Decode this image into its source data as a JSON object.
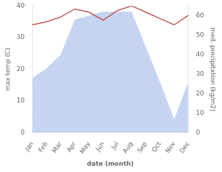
{
  "chart_data": {
    "type": "line",
    "categories": [
      "Jan",
      "Feb",
      "Mar",
      "Apr",
      "May",
      "Jun",
      "Jul",
      "Aug",
      "Sep",
      "Oct",
      "Nov",
      "Dec"
    ],
    "xlabel": "date (month)",
    "ylabel": "max temp (C)",
    "y2label": "med. precipitation (kg/m2)",
    "series": [
      {
        "type": "area",
        "axis": "y2",
        "color": "#c5d4f0",
        "values": [
          28,
          33,
          40,
          58,
          60,
          62,
          62,
          62,
          44,
          26,
          7,
          26
        ]
      },
      {
        "type": "line",
        "color": "#c0504d",
        "values": [
          34,
          35,
          36.5,
          39,
          38,
          35.5,
          38.5,
          40,
          38,
          36,
          34,
          37
        ]
      }
    ],
    "ylim": [
      0,
      40
    ],
    "yticks": [
      0,
      10,
      20,
      30,
      40
    ],
    "y2lim": [
      0,
      65
    ],
    "y2ticks": [
      0,
      10,
      20,
      30,
      40,
      50,
      60
    ],
    "grid": false
  }
}
